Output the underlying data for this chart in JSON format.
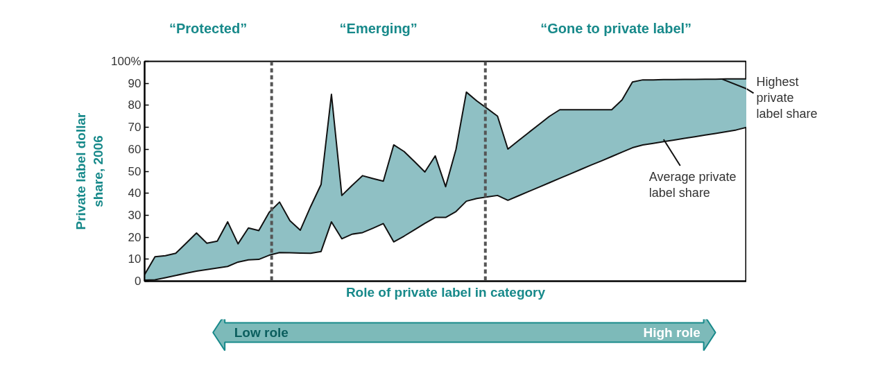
{
  "chart_data": {
    "type": "area",
    "ylabel": "Private label dollar\nshare, 2006",
    "xlabel": "Role of private label in category",
    "annotations": [
      "“Protected”",
      "“Emerging”",
      "“Gone to private label”",
      "Low role",
      "High role"
    ],
    "categories": [
      null,
      null,
      null,
      null,
      null,
      null,
      null,
      null,
      null,
      null,
      null,
      null,
      null,
      null,
      null,
      null,
      null,
      null,
      null,
      null,
      null,
      null,
      null,
      null,
      null,
      null,
      null,
      null,
      null,
      null,
      null,
      null,
      null,
      null,
      null,
      null,
      null,
      null,
      null,
      null,
      null,
      null,
      null,
      null,
      null,
      null,
      null,
      null,
      null,
      null,
      null,
      null,
      null,
      null,
      null,
      null,
      null,
      null,
      null
    ],
    "series": [
      {
        "name": "Highest private label share",
        "color": "#8fc0c4",
        "values": [
          3,
          11.1,
          11.6,
          12.7,
          17.3,
          21.9,
          17.3,
          18.2,
          27,
          17,
          24.2,
          23,
          31.3,
          36,
          27.5,
          23.2,
          34,
          44,
          85,
          39,
          43.6,
          48,
          46.7,
          45.5,
          62,
          59,
          54.4,
          49.7,
          57,
          43,
          60,
          86,
          82,
          78.6,
          75.1,
          60.1,
          63.9,
          67.6,
          71.3,
          75,
          78,
          78,
          78,
          78,
          78,
          78,
          82.5,
          90.6,
          91.6,
          91.6,
          91.7,
          91.7,
          91.8,
          91.8,
          91.9,
          91.9,
          92,
          92,
          92
        ]
      },
      {
        "name": "Average private label share",
        "type": "line",
        "color": "#111111",
        "values": [
          0.5,
          0.6,
          1.6,
          2.6,
          3.6,
          4.6,
          5.3,
          6,
          6.7,
          8.7,
          9.7,
          9.9,
          11.8,
          13,
          12.9,
          12.8,
          12.7,
          13.5,
          27,
          19.3,
          21.4,
          22.1,
          24.1,
          26.2,
          17.9,
          20.5,
          23.4,
          26.3,
          29,
          29,
          31.7,
          36.4,
          37.6,
          38.3,
          39,
          36.8,
          38.8,
          40.8,
          42.8,
          44.8,
          46.8,
          48.8,
          50.8,
          52.8,
          54.7,
          56.7,
          58.7,
          60.7,
          62,
          62.7,
          63.5,
          64.2,
          65,
          65.7,
          66.5,
          67.2,
          68,
          68.8,
          70
        ]
      }
    ],
    "ylim": [
      0,
      100
    ],
    "yticks": [
      0,
      10,
      20,
      30,
      40,
      50,
      60,
      70,
      80,
      90,
      {
        "value": 100,
        "label": "100%"
      }
    ],
    "tick_labels": "y",
    "grid": false
  }
}
